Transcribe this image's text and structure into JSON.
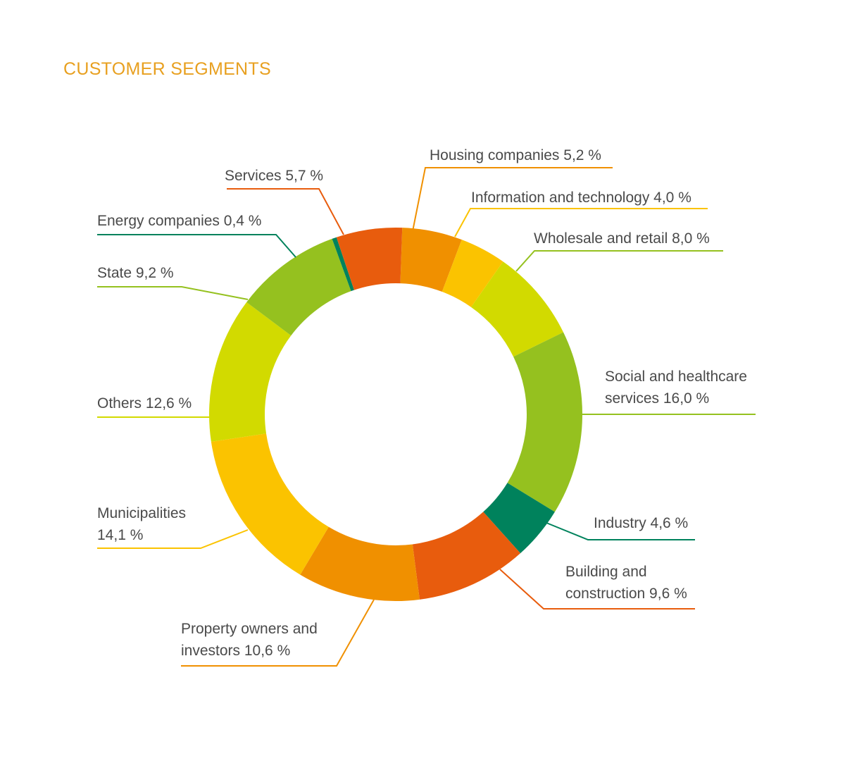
{
  "chart_data": {
    "type": "pie",
    "title": "CUSTOMER SEGMENTS",
    "unit": "%",
    "slices": [
      {
        "key": "housing",
        "label": "Housing companies",
        "value": 5.2,
        "value_text": "5,2 %",
        "color": "#f09000"
      },
      {
        "key": "infotech",
        "label": "Information and technology",
        "value": 4.0,
        "value_text": "4,0 %",
        "color": "#fbc300"
      },
      {
        "key": "wholesale",
        "label": "Wholesale and retail",
        "value": 8.0,
        "value_text": "8,0 %",
        "color": "#d2da00"
      },
      {
        "key": "social",
        "label": "Social and healthcare services",
        "label_line1": "Social and healthcare",
        "label_line2": "services 16,0 %",
        "value": 16.0,
        "value_text": "16,0 %",
        "color": "#95c11f"
      },
      {
        "key": "industry",
        "label": "Industry",
        "value": 4.6,
        "value_text": "4,6 %",
        "color": "#00825c"
      },
      {
        "key": "building",
        "label": "Building and construction",
        "label_line1": "Building and",
        "label_line2": "construction 9,6 %",
        "value": 9.6,
        "value_text": "9,6 %",
        "color": "#e85c0d"
      },
      {
        "key": "property",
        "label": "Property owners and investors",
        "label_line1": "Property owners and",
        "label_line2": "investors 10,6 %",
        "value": 10.6,
        "value_text": "10,6 %",
        "color": "#f09000"
      },
      {
        "key": "municipalities",
        "label": "Municipalities",
        "label_line1": "Municipalities",
        "label_line2": "14,1 %",
        "value": 14.1,
        "value_text": "14,1 %",
        "color": "#fbc300"
      },
      {
        "key": "others",
        "label": "Others",
        "value": 12.6,
        "value_text": "12,6 %",
        "color": "#d2da00"
      },
      {
        "key": "state",
        "label": "State",
        "value": 9.2,
        "value_text": "9,2 %",
        "color": "#95c11f"
      },
      {
        "key": "energy",
        "label": "Energy companies",
        "value": 0.4,
        "value_text": "0,4 %",
        "color": "#00825c"
      },
      {
        "key": "services",
        "label": "Services",
        "value": 5.7,
        "value_text": "5,7 %",
        "color": "#e85c0d"
      }
    ]
  },
  "labels": {
    "housing": "Housing companies 5,2 %",
    "infotech": "Information and technology 4,0 %",
    "wholesale": "Wholesale and retail 8,0 %",
    "social_1": "Social and healthcare",
    "social_2": "services 16,0 %",
    "industry": "Industry 4,6 %",
    "building_1": "Building and",
    "building_2": "construction 9,6 %",
    "property_1": "Property owners and",
    "property_2": "investors 10,6 %",
    "municipalities_1": "Municipalities",
    "municipalities_2": "14,1 %",
    "others": "Others 12,6 %",
    "state": "State 9,2 %",
    "energy": "Energy companies 0,4 %",
    "services": "Services 5,7 %"
  }
}
